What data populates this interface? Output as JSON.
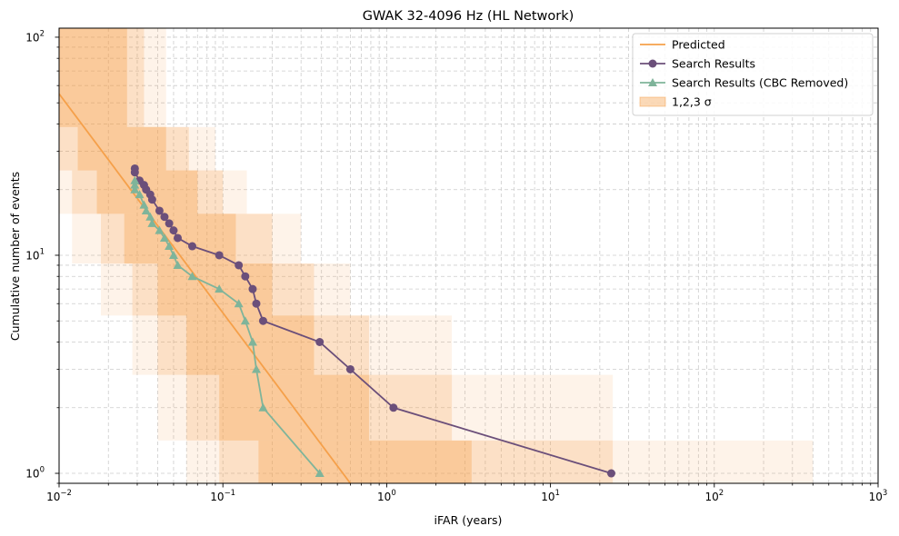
{
  "chart_data": {
    "type": "line",
    "title": "GWAK 32-4096 Hz (HL Network)",
    "xlabel": "iFAR (years)",
    "ylabel": "Cumulative number of events",
    "xscale": "log",
    "yscale": "log",
    "xlim": [
      0.01,
      1000
    ],
    "ylim": [
      0.9,
      110
    ],
    "grid": true,
    "legend_position": "top-right",
    "x_ticks": [
      {
        "value": 0.01,
        "base": "10",
        "exp": "−2"
      },
      {
        "value": 0.1,
        "base": "10",
        "exp": "−1"
      },
      {
        "value": 1,
        "base": "10",
        "exp": "0"
      },
      {
        "value": 10,
        "base": "10",
        "exp": "1"
      },
      {
        "value": 100,
        "base": "10",
        "exp": "2"
      },
      {
        "value": 1000,
        "base": "10",
        "exp": "3"
      }
    ],
    "y_ticks": [
      {
        "value": 1,
        "base": "10",
        "exp": "0"
      },
      {
        "value": 10,
        "base": "10",
        "exp": "1"
      },
      {
        "value": 100,
        "base": "10",
        "exp": "2"
      }
    ],
    "predicted": {
      "name": "Predicted",
      "color": "#f5a04a",
      "x": [
        0.01,
        0.6
      ],
      "y": [
        55,
        0.9
      ]
    },
    "sigma_bands": {
      "name": "1,2,3 σ",
      "color": "#f5a04a",
      "bands": [
        {
          "sigma": 1,
          "opacity": 0.35,
          "y": [
            1,
            2,
            4,
            7,
            12,
            20,
            30,
            50
          ],
          "x_low": [
            0.165,
            0.095,
            0.06,
            0.04,
            0.025,
            0.017,
            0.013,
            0.01
          ],
          "x_high": [
            3.3,
            0.78,
            0.36,
            0.2,
            0.12,
            0.07,
            0.045,
            0.026
          ]
        },
        {
          "sigma": 2,
          "opacity": 0.22,
          "y": [
            1,
            2,
            4,
            7,
            12,
            20,
            30,
            50
          ],
          "x_low": [
            0.095,
            0.06,
            0.04,
            0.028,
            0.018,
            0.012,
            0.01,
            0.01
          ],
          "x_high": [
            24,
            2.5,
            0.78,
            0.36,
            0.2,
            0.1,
            0.062,
            0.033
          ]
        },
        {
          "sigma": 3,
          "opacity": 0.12,
          "y": [
            1,
            2,
            4,
            7,
            12,
            20,
            30,
            50
          ],
          "x_low": [
            0.06,
            0.04,
            0.028,
            0.018,
            0.012,
            0.01,
            0.01,
            0.01
          ],
          "x_high": [
            400,
            24,
            2.5,
            0.6,
            0.3,
            0.14,
            0.09,
            0.045
          ]
        }
      ]
    },
    "series": [
      {
        "name": "Search Results",
        "color": "#6b4f7a",
        "marker": "circle",
        "x": [
          0.029,
          0.029,
          0.031,
          0.033,
          0.034,
          0.036,
          0.037,
          0.041,
          0.044,
          0.047,
          0.05,
          0.053,
          0.065,
          0.095,
          0.125,
          0.137,
          0.152,
          0.16,
          0.176,
          0.39,
          0.6,
          1.1,
          23.5
        ],
        "y": [
          25,
          24,
          22,
          21,
          20,
          19,
          18,
          16,
          15,
          14,
          13,
          12,
          11,
          10,
          9,
          8,
          7,
          6,
          5,
          4,
          3,
          2,
          1
        ]
      },
      {
        "name": "Search Results (CBC Removed)",
        "color": "#7fb49a",
        "marker": "triangle",
        "x": [
          0.029,
          0.029,
          0.029,
          0.031,
          0.033,
          0.034,
          0.036,
          0.037,
          0.041,
          0.044,
          0.047,
          0.05,
          0.053,
          0.065,
          0.095,
          0.125,
          0.137,
          0.152,
          0.16,
          0.176,
          0.39
        ],
        "y": [
          22,
          21,
          20,
          19,
          17,
          16,
          15,
          14,
          13,
          12,
          11,
          10,
          9,
          8,
          7,
          6,
          5,
          4,
          3,
          2,
          1
        ]
      }
    ],
    "legend": [
      {
        "label": "Predicted",
        "kind": "line",
        "color": "#f5a04a"
      },
      {
        "label": "Search Results",
        "kind": "circle",
        "color": "#6b4f7a"
      },
      {
        "label": "Search Results (CBC Removed)",
        "kind": "triangle",
        "color": "#7fb49a"
      },
      {
        "label": "1,2,3 σ",
        "kind": "patch",
        "color": "#f5a04a"
      }
    ]
  }
}
